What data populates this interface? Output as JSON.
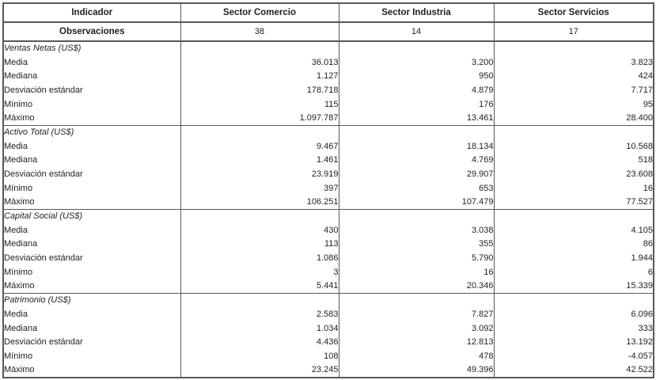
{
  "table": {
    "columns": [
      "Indicador",
      "Sector Comercio",
      "Sector Industria",
      "Sector Servicios"
    ],
    "observations": {
      "label": "Observaciones",
      "values": [
        "38",
        "14",
        "17"
      ]
    },
    "sections": [
      {
        "title": "Ventas Netas (US$)",
        "rows": [
          {
            "label": "Media",
            "values": [
              "36.013",
              "3.200",
              "3.823"
            ]
          },
          {
            "label": "Mediana",
            "values": [
              "1.127",
              "950",
              "424"
            ]
          },
          {
            "label": "Desviación estándar",
            "values": [
              "178.718",
              "4.879",
              "7.717"
            ]
          },
          {
            "label": "Mínimo",
            "values": [
              "115",
              "176",
              "95"
            ]
          },
          {
            "label": "Máximo",
            "values": [
              "1.097.787",
              "13.461",
              "28.400"
            ]
          }
        ]
      },
      {
        "title": "Activo Total (US$)",
        "rows": [
          {
            "label": "Media",
            "values": [
              "9.467",
              "18.134",
              "10.568"
            ]
          },
          {
            "label": "Mediana",
            "values": [
              "1.461",
              "4.769",
              "518"
            ]
          },
          {
            "label": "Desviación estándar",
            "values": [
              "23.919",
              "29.907",
              "23.608"
            ]
          },
          {
            "label": "Mínimo",
            "values": [
              "397",
              "653",
              "16"
            ]
          },
          {
            "label": "Máximo",
            "values": [
              "106.251",
              "107.479",
              "77.527"
            ]
          }
        ]
      },
      {
        "title": "Capital Social (US$)",
        "rows": [
          {
            "label": "Media",
            "values": [
              "430",
              "3.038",
              "4.105"
            ]
          },
          {
            "label": "Mediana",
            "values": [
              "113",
              "355",
              "86"
            ]
          },
          {
            "label": "Desviación estándar",
            "values": [
              "1.086",
              "5.790",
              "1.944"
            ]
          },
          {
            "label": "Mínimo",
            "values": [
              "3",
              "16",
              "6"
            ]
          },
          {
            "label": "Máximo",
            "values": [
              "5.441",
              "20.346",
              "15.339"
            ]
          }
        ]
      },
      {
        "title": "Patrimonio (US$)",
        "rows": [
          {
            "label": "Media",
            "values": [
              "2.583",
              "7.827",
              "6.096"
            ]
          },
          {
            "label": "Mediana",
            "values": [
              "1.034",
              "3.092",
              "333"
            ]
          },
          {
            "label": "Desviación estándar",
            "values": [
              "4.436",
              "12.813",
              "13.192"
            ]
          },
          {
            "label": "Mínimo",
            "values": [
              "108",
              "478",
              "-4.057"
            ]
          },
          {
            "label": "Máximo",
            "values": [
              "23.245",
              "49.396",
              "42.522"
            ]
          }
        ]
      }
    ]
  },
  "chart_data": {
    "type": "table",
    "title": "",
    "columns": [
      "Indicador",
      "Sector Comercio",
      "Sector Industria",
      "Sector Servicios"
    ],
    "observations": [
      38,
      14,
      17
    ],
    "groups": [
      {
        "name": "Ventas Netas (US$)",
        "media": [
          36013,
          3200,
          3823
        ],
        "mediana": [
          1127,
          950,
          424
        ],
        "desviacion_estandar": [
          178718,
          4879,
          7717
        ],
        "minimo": [
          115,
          176,
          95
        ],
        "maximo": [
          1097787,
          13461,
          28400
        ]
      },
      {
        "name": "Activo Total (US$)",
        "media": [
          9467,
          18134,
          10568
        ],
        "mediana": [
          1461,
          4769,
          518
        ],
        "desviacion_estandar": [
          23919,
          29907,
          23608
        ],
        "minimo": [
          397,
          653,
          16
        ],
        "maximo": [
          106251,
          107479,
          77527
        ]
      },
      {
        "name": "Capital Social (US$)",
        "media": [
          430,
          3038,
          4105
        ],
        "mediana": [
          113,
          355,
          86
        ],
        "desviacion_estandar": [
          1086,
          5790,
          1944
        ],
        "minimo": [
          3,
          16,
          6
        ],
        "maximo": [
          5441,
          20346,
          15339
        ]
      },
      {
        "name": "Patrimonio (US$)",
        "media": [
          2583,
          7827,
          6096
        ],
        "mediana": [
          1034,
          3092,
          333
        ],
        "desviacion_estandar": [
          4436,
          12813,
          13192
        ],
        "minimo": [
          108,
          478,
          -4057
        ],
        "maximo": [
          23245,
          49396,
          42522
        ]
      }
    ]
  }
}
